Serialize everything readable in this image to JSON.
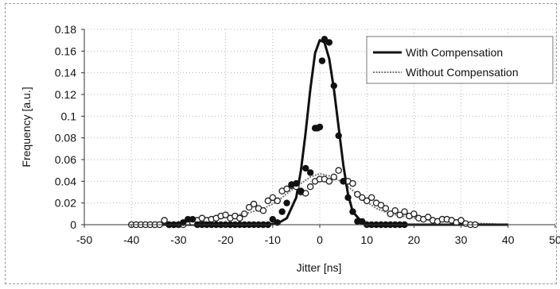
{
  "chart_data": {
    "type": "scatter",
    "xlabel": "Jitter [ns]",
    "ylabel": "Frequency [a.u.]",
    "xlim": [
      -50,
      50
    ],
    "ylim": [
      0,
      0.18
    ],
    "x_ticks": [
      "-50",
      "-40",
      "-30",
      "-20",
      "-10",
      "0",
      "10",
      "20",
      "30",
      "40",
      "50"
    ],
    "y_ticks": [
      "0",
      "0.02",
      "0.04",
      "0.06",
      "0.08",
      "0.1",
      "0.12",
      "0.14",
      "0.16",
      "0.18"
    ],
    "grid": "dotted horizontal and vertical",
    "legend_position": "top-right",
    "series": [
      {
        "name": "With Compensation",
        "style": "solid line with filled circle markers",
        "color": "#111111",
        "fit_line": {
          "x": [
            -40,
            -20,
            -12,
            -9,
            -7,
            -5,
            -4,
            -3,
            -2,
            -1,
            0,
            1,
            2,
            3,
            4,
            5,
            6,
            7,
            9,
            12,
            20,
            40
          ],
          "y": [
            0,
            0,
            0,
            0.001,
            0.006,
            0.025,
            0.05,
            0.085,
            0.125,
            0.158,
            0.17,
            0.168,
            0.153,
            0.125,
            0.09,
            0.055,
            0.028,
            0.012,
            0.002,
            0,
            0,
            0
          ]
        },
        "points": {
          "x": [
            -32,
            -31,
            -30,
            -29,
            -28,
            -27,
            -26,
            -25,
            -24,
            -23,
            -22,
            -21,
            -20,
            -19,
            -18,
            -17,
            -16,
            -15,
            -14,
            -13,
            -12,
            -11,
            -10,
            -9,
            -8,
            -7,
            -6,
            -5,
            -4,
            -3,
            -2,
            -1,
            -0.5,
            0,
            0.5,
            1,
            2,
            3,
            4,
            5,
            6,
            7,
            8,
            9,
            10,
            11,
            12,
            13,
            14,
            15,
            16,
            17,
            18
          ],
          "y": [
            0,
            0,
            0,
            0.002,
            0.005,
            0.005,
            0,
            0,
            0,
            0,
            0,
            0,
            0,
            0,
            0,
            0,
            0,
            0,
            0,
            0,
            0,
            0,
            0.005,
            0.002,
            0.012,
            0.02,
            0.037,
            0.038,
            0.031,
            0.052,
            0.048,
            0.089,
            0.089,
            0.09,
            0.151,
            0.171,
            0.168,
            0.128,
            0.082,
            0.04,
            0.025,
            0.012,
            0.003,
            0.003,
            0,
            0,
            0,
            0,
            0,
            0,
            0,
            0,
            0
          ]
        }
      },
      {
        "name": "Without Compensation",
        "style": "dotted line with open circle markers",
        "color": "#555555",
        "fit_line": {
          "x": [
            -40,
            -35,
            -30,
            -25,
            -20,
            -15,
            -12,
            -10,
            -8,
            -6,
            -4,
            -2,
            0,
            2,
            4,
            6,
            8,
            10,
            12,
            15,
            20,
            25,
            30,
            35,
            40
          ],
          "y": [
            0,
            0.001,
            0.002,
            0.004,
            0.007,
            0.011,
            0.015,
            0.019,
            0.025,
            0.032,
            0.038,
            0.044,
            0.047,
            0.045,
            0.041,
            0.035,
            0.028,
            0.021,
            0.015,
            0.01,
            0.006,
            0.003,
            0.002,
            0.001,
            0
          ]
        },
        "points": {
          "x": [
            -40,
            -39,
            -38,
            -37,
            -36,
            -35,
            -34,
            -33,
            -32,
            -31,
            -30,
            -29,
            -28,
            -27,
            -26,
            -25,
            -24,
            -23,
            -22,
            -21,
            -20,
            -19,
            -18,
            -17,
            -16,
            -15,
            -14,
            -13,
            -12,
            -11,
            -10,
            -9,
            -8,
            -7,
            -6,
            -5,
            -4,
            -3,
            -2,
            -1,
            0,
            1,
            2,
            3,
            4,
            5,
            6,
            7,
            8,
            9,
            10,
            11,
            12,
            13,
            14,
            15,
            16,
            17,
            18,
            19,
            20,
            21,
            22,
            23,
            24,
            25,
            26,
            27,
            28,
            29,
            30,
            31,
            32,
            33
          ],
          "y": [
            0,
            0,
            0,
            0,
            0,
            0,
            0,
            0.004,
            0,
            0,
            0,
            0,
            0.002,
            0.002,
            0.004,
            0.006,
            0.004,
            0.005,
            0.006,
            0.008,
            0.009,
            0.006,
            0.008,
            0.006,
            0.01,
            0.016,
            0.019,
            0.015,
            0.013,
            0.022,
            0.025,
            0.022,
            0.031,
            0.033,
            0.036,
            0.035,
            0.03,
            0.029,
            0.035,
            0.04,
            0.042,
            0.042,
            0.04,
            0.044,
            0.05,
            0.04,
            0.04,
            0.038,
            0.028,
            0.025,
            0.022,
            0.025,
            0.02,
            0.018,
            0.015,
            0.01,
            0.013,
            0.009,
            0.012,
            0.008,
            0.01,
            0.006,
            0.005,
            0.007,
            0.004,
            0.003,
            0.005,
            0.005,
            0.004,
            0.002,
            0.004,
            0.001,
            0,
            0
          ]
        }
      }
    ]
  }
}
